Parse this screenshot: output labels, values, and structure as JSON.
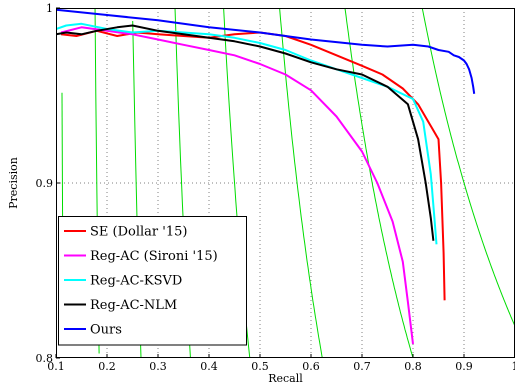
{
  "chart_data": {
    "type": "line",
    "xlabel": "Recall",
    "ylabel": "Precision",
    "xlim": [
      0.1,
      1.0
    ],
    "ylim": [
      0.8,
      1.0
    ],
    "x_ticks": [
      "0.1",
      "0.2",
      "0.3",
      "0.4",
      "0.5",
      "0.6",
      "0.7",
      "0.8",
      "0.9",
      "1"
    ],
    "y_ticks": [
      "0.8",
      "0.9",
      "1"
    ],
    "y_tick_values": [
      0.8,
      0.9,
      1.0
    ],
    "grid": true,
    "legend_position": "bottom-left",
    "series": [
      {
        "name": "SE (Dollar '15)",
        "color": "#ff0000",
        "x": [
          0.11,
          0.14,
          0.18,
          0.22,
          0.26,
          0.3,
          0.35,
          0.4,
          0.45,
          0.5,
          0.55,
          0.6,
          0.65,
          0.7,
          0.74,
          0.78,
          0.81,
          0.83,
          0.85,
          0.855,
          0.86,
          0.862
        ],
        "y": [
          0.985,
          0.984,
          0.987,
          0.984,
          0.986,
          0.985,
          0.984,
          0.983,
          0.985,
          0.986,
          0.984,
          0.979,
          0.973,
          0.967,
          0.962,
          0.954,
          0.945,
          0.935,
          0.925,
          0.9,
          0.86,
          0.833
        ]
      },
      {
        "name": "Reg-AC (Sironi '15)",
        "color": "#ff00ff",
        "x": [
          0.11,
          0.15,
          0.2,
          0.25,
          0.3,
          0.35,
          0.4,
          0.45,
          0.5,
          0.55,
          0.6,
          0.65,
          0.7,
          0.73,
          0.76,
          0.78,
          0.79,
          0.8
        ],
        "y": [
          0.986,
          0.989,
          0.987,
          0.985,
          0.982,
          0.979,
          0.976,
          0.973,
          0.968,
          0.962,
          0.953,
          0.938,
          0.918,
          0.9,
          0.878,
          0.855,
          0.832,
          0.808
        ]
      },
      {
        "name": "Reg-AC-KSVD",
        "color": "#00ffff",
        "x": [
          0.1,
          0.12,
          0.15,
          0.2,
          0.25,
          0.3,
          0.35,
          0.4,
          0.45,
          0.5,
          0.55,
          0.6,
          0.65,
          0.7,
          0.75,
          0.8,
          0.82,
          0.835,
          0.842,
          0.846
        ],
        "y": [
          0.988,
          0.99,
          0.991,
          0.988,
          0.986,
          0.987,
          0.986,
          0.985,
          0.983,
          0.98,
          0.976,
          0.97,
          0.965,
          0.96,
          0.955,
          0.948,
          0.935,
          0.905,
          0.88,
          0.865
        ]
      },
      {
        "name": "Reg-AC-NLM",
        "color": "#000000",
        "x": [
          0.1,
          0.12,
          0.15,
          0.18,
          0.22,
          0.25,
          0.3,
          0.35,
          0.4,
          0.45,
          0.5,
          0.55,
          0.6,
          0.65,
          0.7,
          0.75,
          0.79,
          0.81,
          0.825,
          0.835,
          0.84
        ],
        "y": [
          0.985,
          0.986,
          0.985,
          0.987,
          0.989,
          0.99,
          0.987,
          0.985,
          0.983,
          0.981,
          0.978,
          0.974,
          0.969,
          0.965,
          0.962,
          0.955,
          0.945,
          0.925,
          0.9,
          0.88,
          0.867
        ]
      },
      {
        "name": "Ours",
        "color": "#0000ff",
        "x": [
          0.1,
          0.2,
          0.3,
          0.4,
          0.5,
          0.6,
          0.7,
          0.75,
          0.8,
          0.83,
          0.85,
          0.87,
          0.88,
          0.89,
          0.9,
          0.905,
          0.91,
          0.915,
          0.918,
          0.92
        ],
        "y": [
          0.999,
          0.996,
          0.993,
          0.989,
          0.986,
          0.982,
          0.979,
          0.978,
          0.979,
          0.978,
          0.976,
          0.975,
          0.973,
          0.972,
          0.97,
          0.968,
          0.965,
          0.96,
          0.955,
          0.951
        ]
      }
    ],
    "iso_f_curves": {
      "color": "#00dd00",
      "f_values": [
        0.1,
        0.2,
        0.3,
        0.4,
        0.5,
        0.6,
        0.7,
        0.8,
        0.9
      ]
    }
  }
}
